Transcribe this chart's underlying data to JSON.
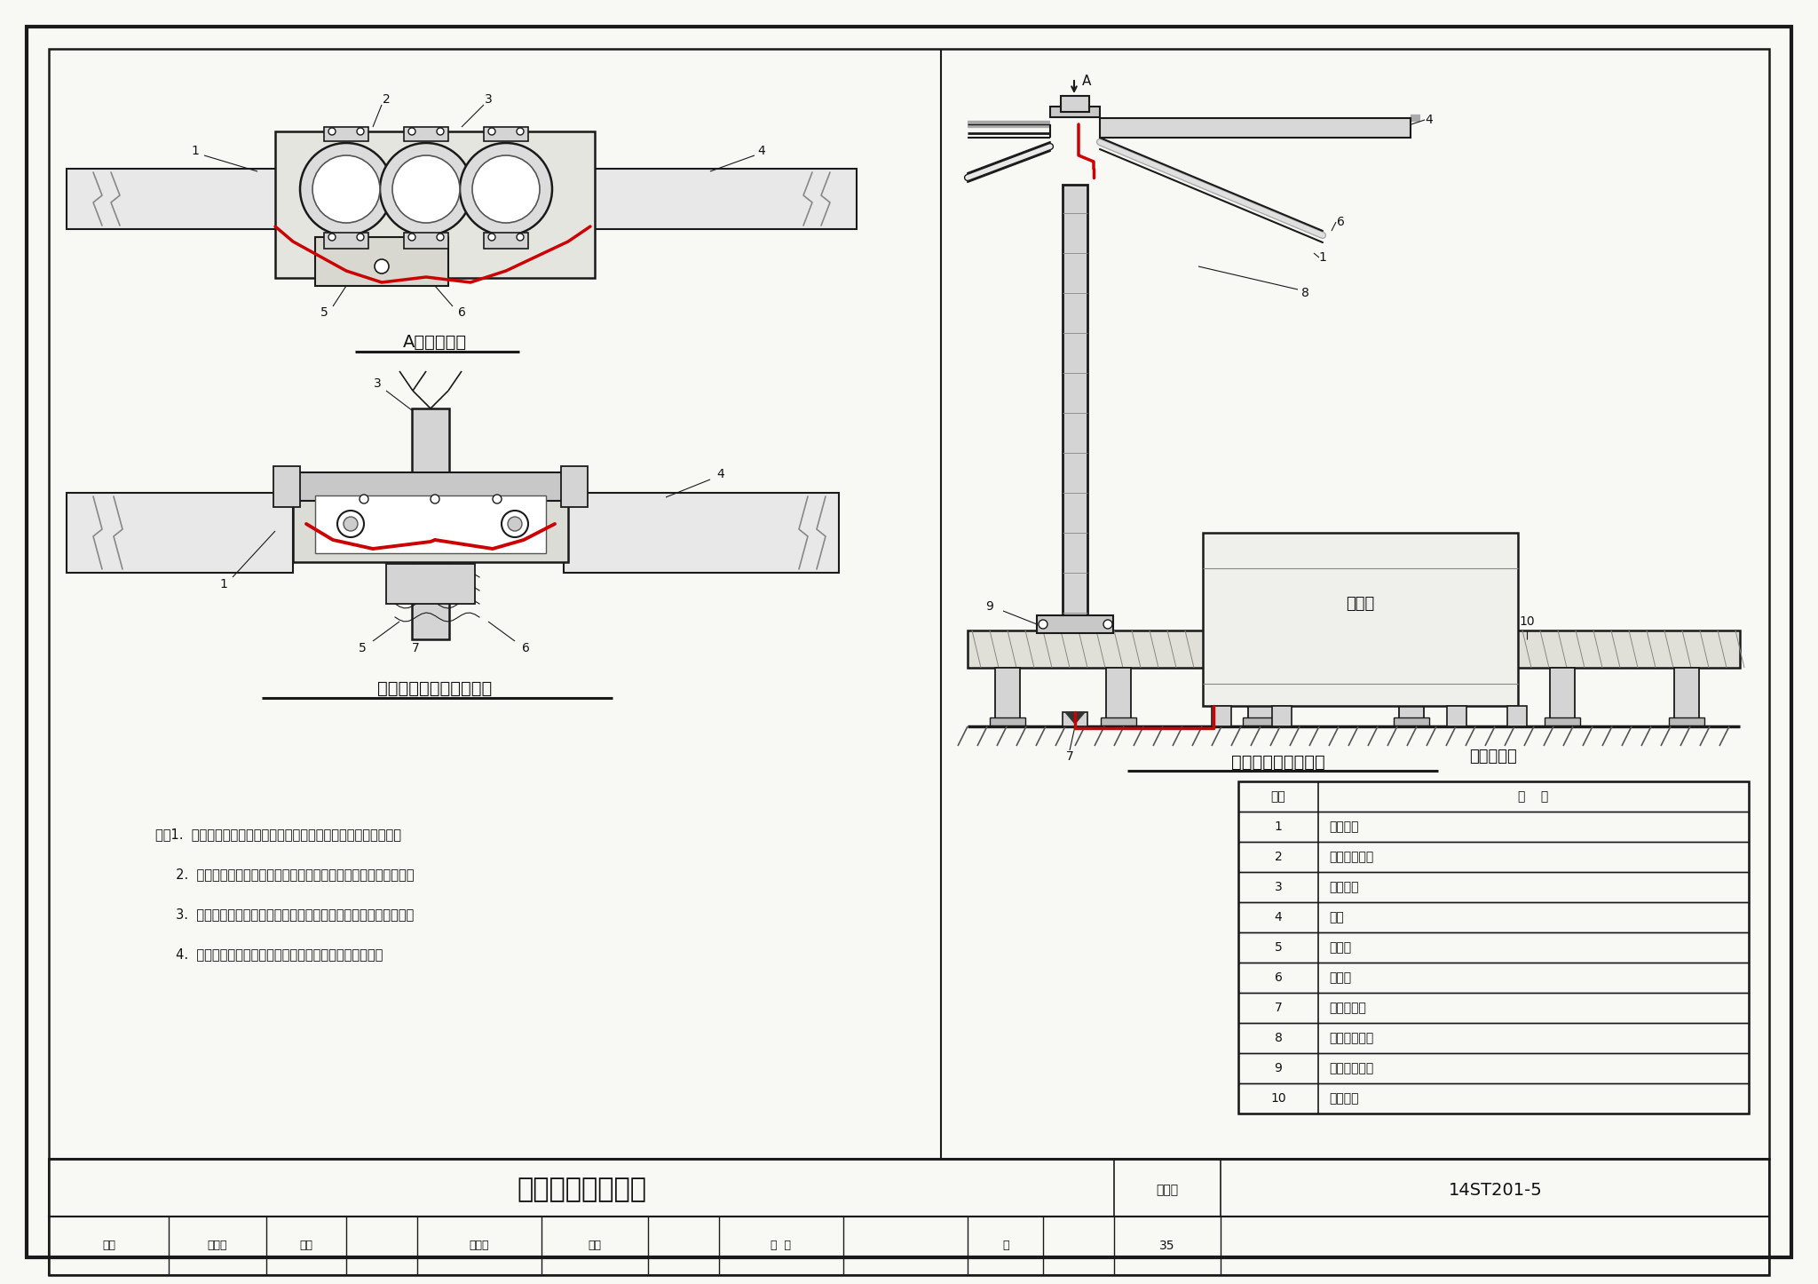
{
  "page_bg": "#f8f8f5",
  "title_main": "立柱式天线安装图",
  "atlas_no": "14ST201-5",
  "label_A_view": "A向视图放大",
  "label_front_view": "立柱式天线安装正立面图",
  "label_total_view": "立柱式天线安装总图",
  "label_name_table": "名称对照表",
  "table_headers": [
    "序号",
    "名    称"
  ],
  "table_items": [
    [
      "1",
      "天线馈线"
    ],
    [
      "2",
      "固定天线卡筼"
    ],
    [
      "3",
      "天线支柱"
    ],
    [
      "4",
      "天线"
    ],
    [
      "5",
      "分配器"
    ],
    [
      "6",
      "金属筱"
    ],
    [
      "7",
      "馈线引线口"
    ],
    [
      "8",
      "天线支柱上部"
    ],
    [
      "9",
      "天线支柱下部"
    ],
    [
      "10",
      "人行平台"
    ]
  ],
  "notes": [
    "注：1.  定位天线的安装位置、安装方法应符合设计和相关技术要求。",
    "     2.  定位天线顶面应与钉轨平行，距钉轨顶面距离应符合设计规定。",
    "     3.  定位天线安装的纵向、横向偏移量应符合设计和相关技术要求。",
    "     4.  站台两側对位天线设备间的连接电缆长度应基本相同。"
  ],
  "red_color": "#cc0000",
  "dark_color": "#1a1a1a",
  "gray_fill": "#d4d4d4",
  "light_fill": "#ebebeb",
  "atlas_label": "图集号",
  "review_label": "审核",
  "reviewer": "高玉起",
  "check_label": "校对",
  "checker": "张晓坡",
  "design_label": "设计",
  "designer": "王  核",
  "page_label": "页",
  "page_num": "35",
  "diantaixiang": "电台筱"
}
